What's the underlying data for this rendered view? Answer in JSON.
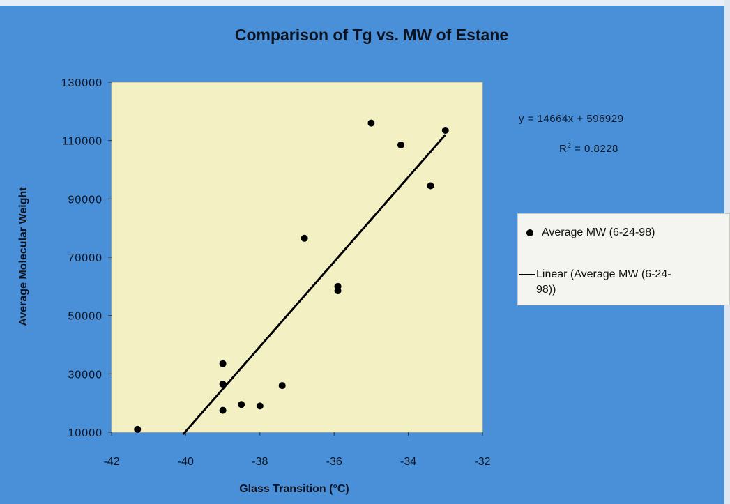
{
  "chart_data": {
    "type": "scatter",
    "title": "Comparison of Tg vs. MW of Estane",
    "xlabel": "Glass Transition (°C)",
    "ylabel": "Average Molecular Weight",
    "xlim": [
      -42,
      -32
    ],
    "ylim": [
      10000,
      130000
    ],
    "x_ticks": [
      "-42",
      "-40",
      "-38",
      "-36",
      "-34",
      "-32"
    ],
    "y_ticks": [
      "10000",
      "30000",
      "50000",
      "70000",
      "90000",
      "110000",
      "130000"
    ],
    "grid": false,
    "series": [
      {
        "name": "Average MW (6-24-98)",
        "type": "scatter",
        "points": [
          {
            "x": -41.3,
            "y": 11000
          },
          {
            "x": -39.0,
            "y": 17500
          },
          {
            "x": -39.0,
            "y": 26500
          },
          {
            "x": -39.0,
            "y": 33500
          },
          {
            "x": -38.5,
            "y": 19500
          },
          {
            "x": -38.0,
            "y": 19000
          },
          {
            "x": -37.4,
            "y": 26000
          },
          {
            "x": -36.8,
            "y": 76500
          },
          {
            "x": -35.9,
            "y": 60000
          },
          {
            "x": -35.9,
            "y": 58500
          },
          {
            "x": -35.0,
            "y": 116000
          },
          {
            "x": -34.2,
            "y": 108500
          },
          {
            "x": -33.4,
            "y": 94500
          },
          {
            "x": -33.0,
            "y": 113500
          }
        ]
      },
      {
        "name": "Linear (Average MW (6-24-98))",
        "type": "line",
        "points": [
          {
            "x": -40.07,
            "y": 9300
          },
          {
            "x": -33.0,
            "y": 112000
          }
        ]
      }
    ],
    "equation": "y = 14664x + 596929",
    "r_squared_label": "R",
    "r_squared_exp": "2",
    "r_squared_value": "= 0.8228",
    "legend": {
      "position": "right",
      "entries": [
        {
          "label": "Average MW (6-24-98)",
          "symbol": "dot"
        },
        {
          "label_line1": "Linear (Average MW (6-24-",
          "label_line2": "98))",
          "symbol": "line"
        }
      ]
    },
    "colors": {
      "background": "#4a90d8",
      "plot_area": "#f3f0c4",
      "marker": "#000000",
      "trendline": "#000000"
    }
  }
}
